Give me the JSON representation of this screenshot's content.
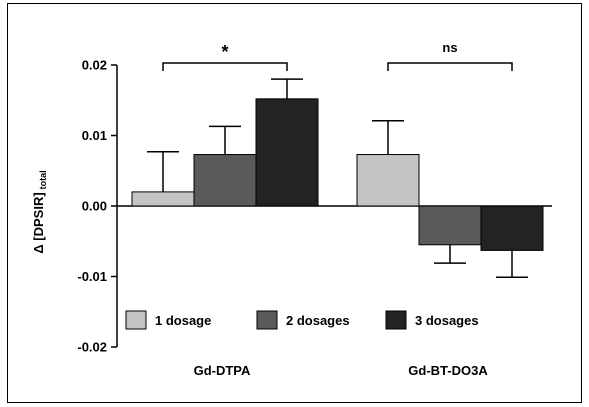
{
  "chart_data": {
    "type": "bar",
    "title": "",
    "xlabel": "",
    "ylabel": {
      "main": "Δ [DPSIR]",
      "subscript": "total"
    },
    "ylim": [
      -0.02,
      0.02
    ],
    "yticks": [
      0.02,
      0.01,
      0.0,
      -0.01,
      -0.02
    ],
    "ytick_labels": [
      "0.02",
      "0.01",
      "0.00",
      "-0.01",
      "-0.02"
    ],
    "categories": [
      "Gd-DTPA",
      "Gd-BT-DO3A"
    ],
    "series": [
      {
        "name": "1 dosage",
        "color": "#c4c4c4",
        "values": [
          0.002,
          0.0073
        ],
        "error": [
          0.0057,
          0.0048
        ],
        "error_dir": [
          "up",
          "up"
        ]
      },
      {
        "name": "2 dosages",
        "color": "#5a5a5a",
        "values": [
          0.0073,
          -0.0055
        ],
        "error": [
          0.004,
          0.0026
        ],
        "error_dir": [
          "up",
          "down"
        ]
      },
      {
        "name": "3 dosages",
        "color": "#232323",
        "values": [
          0.0152,
          -0.0063
        ],
        "error": [
          0.0028,
          0.0038
        ],
        "error_dir": [
          "up",
          "down"
        ]
      }
    ],
    "annotations": [
      {
        "text": "*",
        "category": "Gd-DTPA",
        "from_series": 0,
        "to_series": 2
      },
      {
        "text": "ns",
        "category": "Gd-BT-DO3A",
        "from_series": 0,
        "to_series": 2
      }
    ],
    "legend": {
      "placement": "bottom-left",
      "orientation": "horizontal"
    },
    "grid": false
  }
}
